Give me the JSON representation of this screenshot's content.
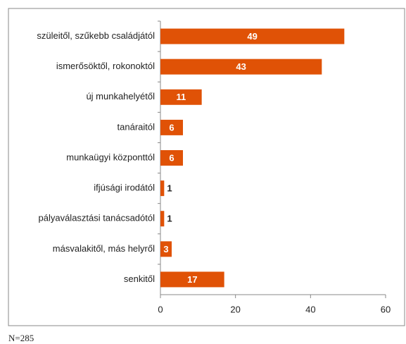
{
  "chart_data": {
    "type": "bar",
    "orientation": "horizontal",
    "categories": [
      "szüleitől, szűkebb családjától",
      "ismerősöktől, rokonoktól",
      "új munkahelyétől",
      "tanáraitól",
      "munkaügyi központtól",
      "ifjúsági irodától",
      "pályaválasztási tanácsadótól",
      "másvalakitől, más helyről",
      "senkitől"
    ],
    "values": [
      49,
      43,
      11,
      6,
      6,
      1,
      1,
      3,
      17
    ],
    "color": "#e05206",
    "xlim": [
      0,
      60
    ],
    "xticks": [
      0,
      20,
      40,
      60
    ],
    "grid": false,
    "note": "N=285"
  }
}
